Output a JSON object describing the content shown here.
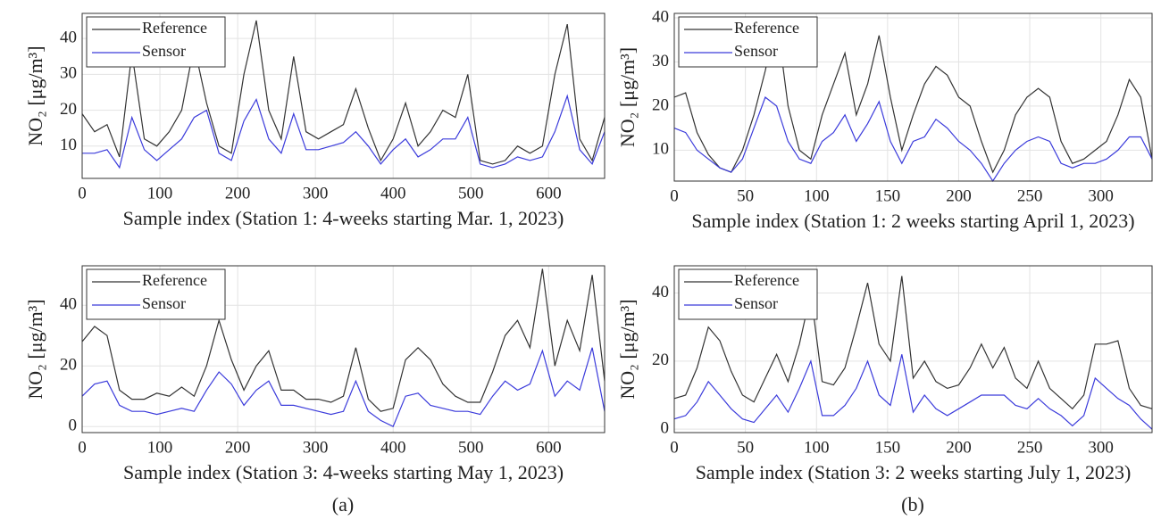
{
  "chart_data": [
    {
      "type": "line",
      "x_label": "Sample index (Station 1: 4-weeks starting Mar. 1, 2023)",
      "y_label": "NO₂ [μg/m³]",
      "x": [
        0,
        16,
        32,
        48,
        64,
        80,
        96,
        112,
        128,
        144,
        160,
        176,
        192,
        208,
        224,
        240,
        256,
        272,
        288,
        304,
        320,
        336,
        352,
        368,
        384,
        400,
        416,
        432,
        448,
        464,
        480,
        496,
        512,
        528,
        544,
        560,
        576,
        592,
        608,
        624,
        640,
        656,
        672
      ],
      "series": [
        {
          "name": "Reference",
          "color": "#333333",
          "values": [
            19,
            14,
            16,
            7,
            36,
            12,
            10,
            14,
            20,
            38,
            22,
            10,
            8,
            30,
            45,
            20,
            12,
            35,
            14,
            12,
            14,
            16,
            26,
            15,
            6,
            12,
            22,
            10,
            14,
            20,
            18,
            30,
            6,
            5,
            6,
            10,
            8,
            10,
            30,
            44,
            12,
            6,
            18
          ]
        },
        {
          "name": "Sensor",
          "color": "#3b3bdb",
          "values": [
            8,
            8,
            9,
            4,
            18,
            9,
            6,
            9,
            12,
            18,
            20,
            8,
            6,
            17,
            23,
            12,
            8,
            19,
            9,
            9,
            10,
            11,
            14,
            10,
            5,
            9,
            12,
            7,
            9,
            12,
            12,
            18,
            5,
            4,
            5,
            7,
            6,
            7,
            14,
            24,
            9,
            5,
            14
          ]
        }
      ],
      "xlim": [
        0,
        672
      ],
      "ylim": [
        1,
        47
      ],
      "xticks": [
        0,
        100,
        200,
        300,
        400,
        500,
        600
      ],
      "yticks": [
        10,
        20,
        30,
        40
      ],
      "grid": true,
      "legend": "upper-left"
    },
    {
      "type": "line",
      "x_label": "Sample index (Station 1: 2 weeks starting April 1, 2023)",
      "y_label": "NO₂ [μg/m³]",
      "x": [
        0,
        8,
        16,
        24,
        32,
        40,
        48,
        56,
        64,
        72,
        80,
        88,
        96,
        104,
        112,
        120,
        128,
        136,
        144,
        152,
        160,
        168,
        176,
        184,
        192,
        200,
        208,
        216,
        224,
        232,
        240,
        248,
        256,
        264,
        272,
        280,
        288,
        296,
        304,
        312,
        320,
        328,
        336
      ],
      "series": [
        {
          "name": "Reference",
          "color": "#333333",
          "values": [
            22,
            23,
            14,
            9,
            6,
            5,
            10,
            18,
            28,
            40,
            20,
            10,
            8,
            18,
            25,
            32,
            18,
            25,
            36,
            22,
            10,
            18,
            25,
            29,
            27,
            22,
            20,
            12,
            5,
            10,
            18,
            22,
            24,
            22,
            12,
            7,
            8,
            10,
            12,
            18,
            26,
            22,
            8
          ]
        },
        {
          "name": "Sensor",
          "color": "#3b3bdb",
          "values": [
            15,
            14,
            10,
            8,
            6,
            5,
            8,
            15,
            22,
            20,
            12,
            8,
            7,
            12,
            14,
            18,
            12,
            16,
            21,
            12,
            7,
            12,
            13,
            17,
            15,
            12,
            10,
            7,
            3,
            7,
            10,
            12,
            13,
            12,
            7,
            6,
            7,
            7,
            8,
            10,
            13,
            13,
            8
          ]
        }
      ],
      "xlim": [
        0,
        336
      ],
      "ylim": [
        3,
        41
      ],
      "xticks": [
        0,
        50,
        100,
        150,
        200,
        250,
        300
      ],
      "yticks": [
        10,
        20,
        30,
        40
      ],
      "grid": true,
      "legend": "upper-left"
    },
    {
      "type": "line",
      "x_label": "Sample index (Station 3: 4-weeks starting May 1, 2023)",
      "y_label": "NO₂ [μg/m³]",
      "x": [
        0,
        16,
        32,
        48,
        64,
        80,
        96,
        112,
        128,
        144,
        160,
        176,
        192,
        208,
        224,
        240,
        256,
        272,
        288,
        304,
        320,
        336,
        352,
        368,
        384,
        400,
        416,
        432,
        448,
        464,
        480,
        496,
        512,
        528,
        544,
        560,
        576,
        592,
        608,
        624,
        640,
        656,
        672
      ],
      "series": [
        {
          "name": "Reference",
          "color": "#333333",
          "values": [
            28,
            33,
            30,
            12,
            9,
            9,
            11,
            10,
            13,
            10,
            20,
            35,
            22,
            12,
            20,
            25,
            12,
            12,
            9,
            9,
            8,
            10,
            26,
            9,
            5,
            6,
            22,
            26,
            22,
            14,
            10,
            8,
            8,
            18,
            30,
            35,
            26,
            52,
            20,
            35,
            25,
            50,
            15
          ]
        },
        {
          "name": "Sensor",
          "color": "#3b3bdb",
          "values": [
            10,
            14,
            15,
            7,
            5,
            5,
            4,
            5,
            6,
            5,
            12,
            18,
            14,
            7,
            12,
            15,
            7,
            7,
            6,
            5,
            4,
            5,
            15,
            5,
            2,
            0,
            10,
            11,
            7,
            6,
            5,
            5,
            4,
            10,
            15,
            12,
            14,
            25,
            10,
            15,
            12,
            26,
            5
          ]
        }
      ],
      "xlim": [
        0,
        672
      ],
      "ylim": [
        -2,
        53
      ],
      "xticks": [
        0,
        100,
        200,
        300,
        400,
        500,
        600
      ],
      "yticks": [
        0,
        20,
        40
      ],
      "grid": true,
      "legend": "upper-left"
    },
    {
      "type": "line",
      "x_label": "Sample index (Station 3: 2 weeks starting July 1, 2023)",
      "y_label": "NO₂ [μg/m³]",
      "x": [
        0,
        8,
        16,
        24,
        32,
        40,
        48,
        56,
        64,
        72,
        80,
        88,
        96,
        104,
        112,
        120,
        128,
        136,
        144,
        152,
        160,
        168,
        176,
        184,
        192,
        200,
        208,
        216,
        224,
        232,
        240,
        248,
        256,
        264,
        272,
        280,
        288,
        296,
        304,
        312,
        320,
        328,
        336
      ],
      "series": [
        {
          "name": "Reference",
          "color": "#333333",
          "values": [
            9,
            10,
            18,
            30,
            26,
            17,
            10,
            8,
            15,
            22,
            14,
            25,
            40,
            14,
            13,
            18,
            30,
            43,
            25,
            20,
            45,
            15,
            20,
            14,
            12,
            13,
            18,
            25,
            18,
            24,
            15,
            12,
            20,
            12,
            9,
            6,
            10,
            25,
            25,
            26,
            12,
            7,
            6
          ]
        },
        {
          "name": "Sensor",
          "color": "#3b3bdb",
          "values": [
            3,
            4,
            8,
            14,
            10,
            6,
            3,
            2,
            6,
            10,
            5,
            12,
            20,
            4,
            4,
            7,
            12,
            20,
            10,
            7,
            22,
            5,
            10,
            6,
            4,
            6,
            8,
            10,
            10,
            10,
            7,
            6,
            9,
            6,
            4,
            1,
            4,
            15,
            12,
            9,
            7,
            3,
            0
          ]
        }
      ],
      "xlim": [
        0,
        336
      ],
      "ylim": [
        -1,
        48
      ],
      "xticks": [
        0,
        50,
        100,
        150,
        200,
        250,
        300
      ],
      "yticks": [
        0,
        20,
        40
      ],
      "grid": true,
      "legend": "upper-left"
    }
  ],
  "panel_labels": [
    "(a)",
    "(b)"
  ]
}
